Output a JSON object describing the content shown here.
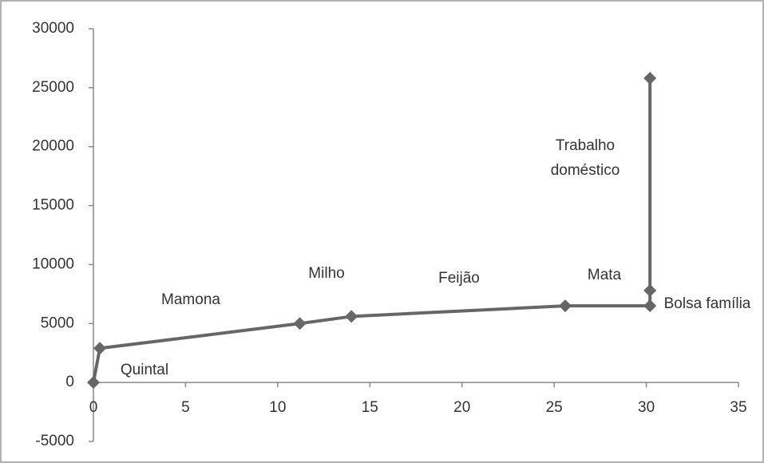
{
  "chart_data": {
    "type": "line",
    "x": [
      0,
      0.35,
      11.2,
      14.0,
      25.6,
      30.2,
      30.2,
      30.2
    ],
    "series": [
      {
        "color": "#666666",
        "values": [
          0,
          2900,
          5000,
          5600,
          6500,
          6500,
          7800,
          25800
        ]
      }
    ],
    "xlim": [
      0,
      35
    ],
    "xticks": [
      0,
      5,
      10,
      15,
      20,
      25,
      30,
      35
    ],
    "ylim": [
      -5000,
      30000
    ],
    "yticks": [
      -5000,
      0,
      5000,
      10000,
      15000,
      20000,
      25000,
      30000
    ],
    "grid": false,
    "annotations": [
      "Quintal",
      "Mamona",
      "Milho",
      "Feijão",
      "Mata",
      "Bolsa família",
      "Trabalho doméstico"
    ]
  }
}
